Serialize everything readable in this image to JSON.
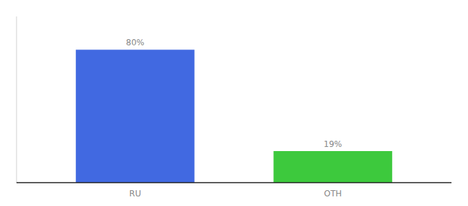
{
  "chart_data": {
    "type": "bar",
    "categories": [
      "RU",
      "OTH"
    ],
    "values": [
      80,
      19
    ],
    "value_labels": [
      "80%",
      "19%"
    ],
    "colors": [
      "#4169e1",
      "#3dc93d"
    ],
    "ylim": [
      0,
      100
    ],
    "data_labels": true,
    "tick_labels": "x",
    "grid": false
  }
}
